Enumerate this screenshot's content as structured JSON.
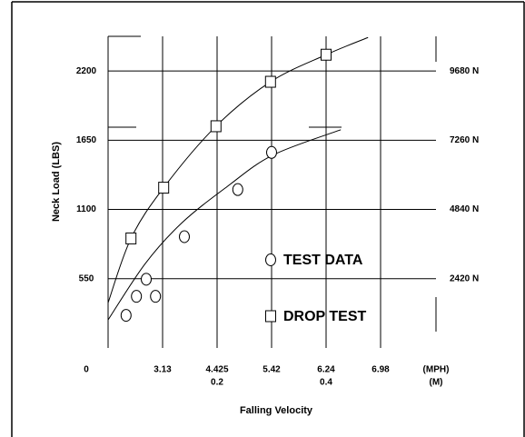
{
  "chart_data": {
    "type": "scatter",
    "y_label": "Neck Load (LBS)",
    "x_label": "Falling Velocity",
    "xlim": [
      0,
      0.6
    ],
    "xticks": [
      {
        "value": 0,
        "label": "0"
      },
      {
        "value": 0.1,
        "label": "3.13"
      },
      {
        "value": 0.2,
        "label": "4.425"
      },
      {
        "value": 0.3,
        "label": "5.42"
      },
      {
        "value": 0.4,
        "label": "6.24"
      },
      {
        "value": 0.5,
        "label": "6.98"
      }
    ],
    "xticks2": [
      0.2,
      0.4
    ],
    "x_unit": "(MPH)",
    "x_unit2": "(M)",
    "ylim": [
      0,
      2475
    ],
    "yticks": [
      550,
      1100,
      1650,
      2200
    ],
    "y2lim": [
      0,
      10890
    ],
    "y2ticks": [
      {
        "value": 2420,
        "label": "2420 N"
      },
      {
        "value": 4840,
        "label": "4840 N"
      },
      {
        "value": 7260,
        "label": "7260 N"
      },
      {
        "value": 9680,
        "label": "9680 N"
      }
    ],
    "grid": true,
    "series": [
      {
        "name": "TEST DATA",
        "marker": "circle",
        "color": "#000000",
        "x": [
          0.033,
          0.052,
          0.07,
          0.087,
          0.14,
          0.238,
          0.3
        ],
        "values": [
          259,
          410,
          546,
          410,
          884,
          1258,
          1553
        ]
      },
      {
        "name": "DROP TEST",
        "marker": "square",
        "color": "#000000",
        "x": [
          0.042,
          0.102,
          0.198,
          0.298,
          0.4
        ],
        "values": [
          870,
          1273,
          1761,
          2114,
          2329
        ]
      }
    ],
    "curves": [
      {
        "x": [
          0,
          0.042,
          0.102,
          0.198,
          0.298,
          0.4,
          0.477
        ],
        "values": [
          359,
          870,
          1273,
          1761,
          2114,
          2329,
          2466
        ]
      },
      {
        "x": [
          0,
          0.068,
          0.135,
          0.218,
          0.302,
          0.427
        ],
        "values": [
          223,
          669,
          992,
          1280,
          1531,
          1733
        ]
      }
    ]
  }
}
